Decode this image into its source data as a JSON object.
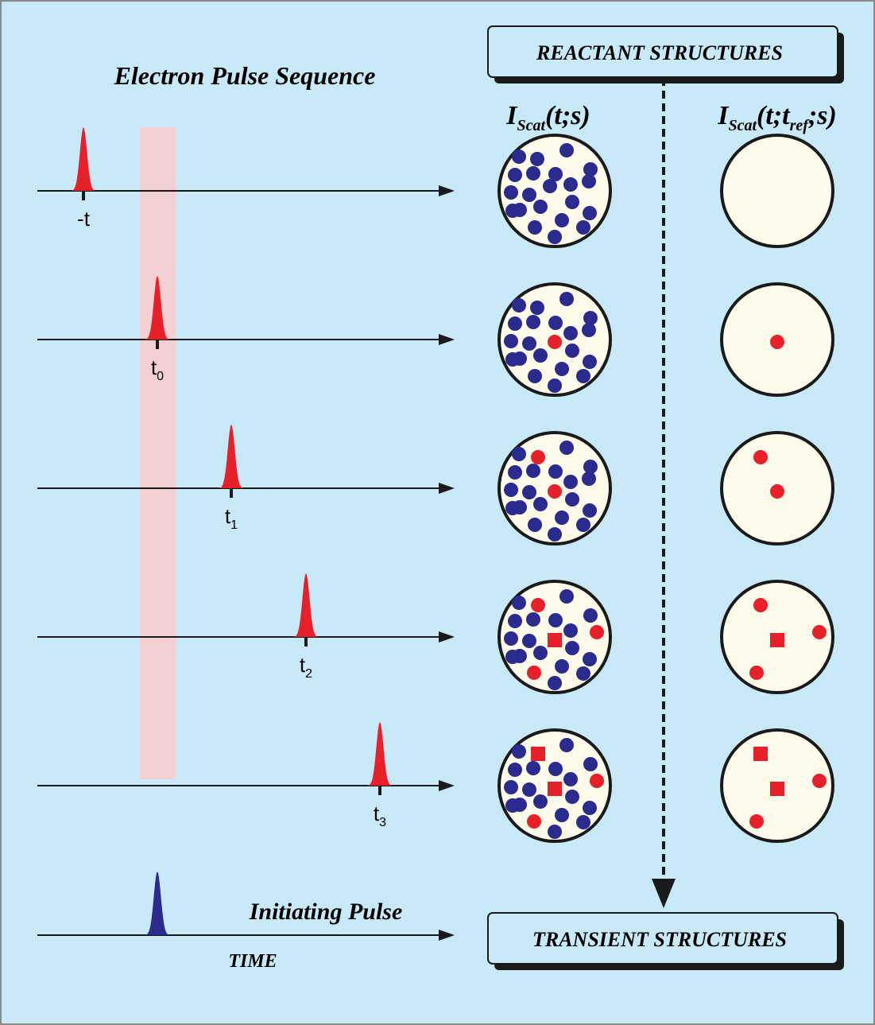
{
  "title": "Electron Pulse Sequence",
  "reactant_box": "REACTANT STRUCTURES",
  "transient_box": "TRANSIENT STRUCTURES",
  "column_headers": [
    {
      "parts": [
        "I",
        "Scat",
        "(t;s)"
      ]
    },
    {
      "parts": [
        "I",
        "Scat",
        "(t;t",
        "ref",
        ";s)"
      ]
    }
  ],
  "pulses": [
    {
      "label": "-t"
    },
    {
      "label": "t",
      "sub": "0"
    },
    {
      "label": "t",
      "sub": "1"
    },
    {
      "label": "t",
      "sub": "2"
    },
    {
      "label": "t",
      "sub": "3"
    }
  ],
  "initiating_pulse": "Initiating Pulse",
  "time_label": "TIME"
}
